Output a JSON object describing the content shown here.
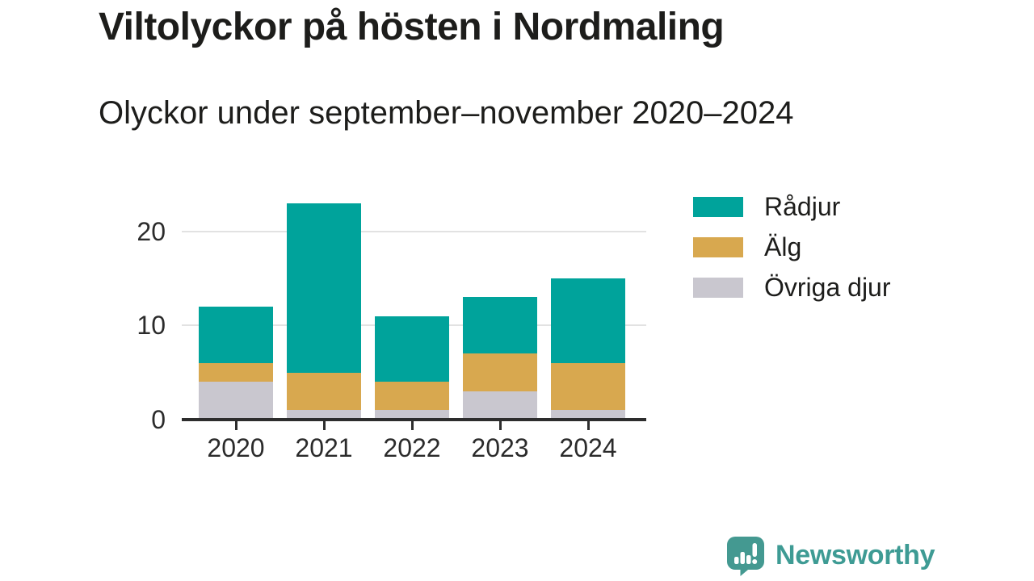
{
  "header": {
    "title": "Viltolyckor på hösten i Nordmaling",
    "subtitle": "Olyckor under september–november 2020–2024"
  },
  "chart_data": {
    "type": "bar",
    "stacked": true,
    "categories": [
      "2020",
      "2021",
      "2022",
      "2023",
      "2024"
    ],
    "series": [
      {
        "name": "Rådjur",
        "color": "#00A39B",
        "values": [
          6,
          18,
          7,
          6,
          9
        ]
      },
      {
        "name": "Älg",
        "color": "#D8A84F",
        "values": [
          2,
          4,
          3,
          4,
          5
        ]
      },
      {
        "name": "Övriga djur",
        "color": "#C9C7CF",
        "values": [
          4,
          1,
          1,
          3,
          1
        ]
      }
    ],
    "stack_order_bottom_to_top": [
      "Övriga djur",
      "Älg",
      "Rådjur"
    ],
    "totals": [
      12,
      23,
      11,
      13,
      15
    ],
    "yticks": [
      0,
      10,
      20
    ],
    "ylim": [
      0,
      24
    ],
    "xlabel": "",
    "ylabel": "",
    "grid": "horizontal",
    "legend_position": "right"
  },
  "footer": {
    "brand": "Newsworthy",
    "brand_color": "#3E9B94",
    "icon": "newsworthy-logo"
  },
  "colors": {
    "axis": "#2d2d2d",
    "gridline": "#e2e2e2",
    "text": "#1d1d1b"
  }
}
